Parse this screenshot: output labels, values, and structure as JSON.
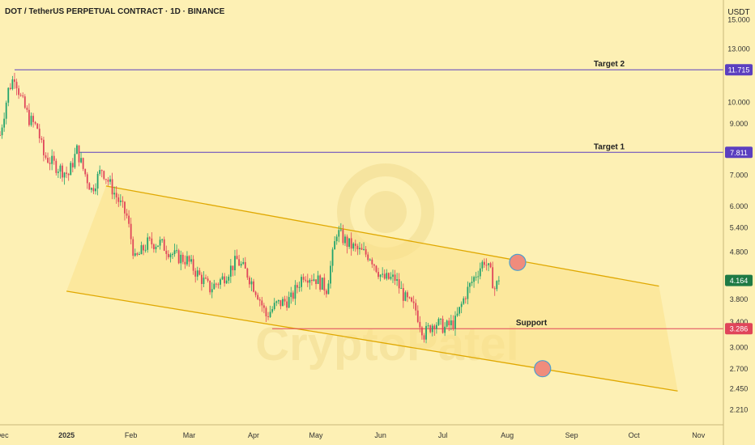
{
  "header": {
    "title": "DOT / TetherUS PERPETUAL CONTRACT · 1D · BINANCE"
  },
  "currency": "USDT",
  "watermark": "CryptoPatel",
  "colors": {
    "background": "#fdf0b4",
    "up": "#22a36c",
    "down": "#e0455a",
    "channel_line": "#e0a800",
    "channel_fill": "#fbe28e",
    "target_line": "#5b3fc0",
    "support_line": "#e0455a",
    "last_price_badge": "#1e7a45",
    "marker": "#f08c7c"
  },
  "chart_data": {
    "type": "candlestick",
    "y_scale": "log",
    "ylim": [
      2.05,
      16.5
    ],
    "xlim": [
      "2024-11-30",
      "2025-11-13"
    ],
    "x_ticks": [
      {
        "date": "2024-12-01",
        "label": "Dec"
      },
      {
        "date": "2025-01-01",
        "label": "2025"
      },
      {
        "date": "2025-02-01",
        "label": "Feb"
      },
      {
        "date": "2025-03-01",
        "label": "Mar"
      },
      {
        "date": "2025-04-01",
        "label": "Apr"
      },
      {
        "date": "2025-05-01",
        "label": "May"
      },
      {
        "date": "2025-06-01",
        "label": "Jun"
      },
      {
        "date": "2025-07-01",
        "label": "Jul"
      },
      {
        "date": "2025-08-01",
        "label": "Aug"
      },
      {
        "date": "2025-09-01",
        "label": "Sep"
      },
      {
        "date": "2025-10-01",
        "label": "Oct"
      },
      {
        "date": "2025-11-01",
        "label": "Nov"
      }
    ],
    "y_ticks": [
      "15.000",
      "13.000",
      "11.715",
      "10.000",
      "9.000",
      "7.811",
      "7.000",
      "6.000",
      "5.400",
      "4.800",
      "4.164",
      "3.800",
      "3.400",
      "3.286",
      "3.000",
      "2.700",
      "2.450",
      "2.210"
    ],
    "horizontal_levels": [
      {
        "label": "Target 2",
        "value": 11.715,
        "tag": "11.715"
      },
      {
        "label": "Target 1",
        "value": 7.811,
        "tag": "7.811"
      },
      {
        "label": "Support",
        "value": 3.286,
        "tag": "3.286"
      }
    ],
    "last_price": {
      "value": 4.164,
      "tag": "4.164"
    },
    "channel": {
      "upper": [
        [
          "2025-01-20",
          6.62
        ],
        [
          "2025-10-13",
          4.05
        ]
      ],
      "lower": [
        [
          "2025-01-01",
          3.95
        ],
        [
          "2025-10-22",
          2.42
        ]
      ]
    },
    "markers": [
      {
        "date": "2025-08-06",
        "value": 4.55
      },
      {
        "date": "2025-08-18",
        "value": 2.7
      }
    ],
    "price_path": [
      [
        "2024-11-30",
        8.5
      ],
      [
        "2024-12-04",
        10.6
      ],
      [
        "2024-12-07",
        11.4
      ],
      [
        "2024-12-10",
        10.2
      ],
      [
        "2024-12-14",
        9.2
      ],
      [
        "2024-12-18",
        8.8
      ],
      [
        "2024-12-21",
        7.7
      ],
      [
        "2024-12-27",
        7.3
      ],
      [
        "2025-01-02",
        7.0
      ],
      [
        "2025-01-06",
        7.9
      ],
      [
        "2025-01-09",
        7.2
      ],
      [
        "2025-01-13",
        6.5
      ],
      [
        "2025-01-18",
        7.2
      ],
      [
        "2025-01-24",
        6.4
      ],
      [
        "2025-01-30",
        5.7
      ],
      [
        "2025-02-03",
        4.6
      ],
      [
        "2025-02-09",
        5.0
      ],
      [
        "2025-02-15",
        5.0
      ],
      [
        "2025-02-22",
        4.7
      ],
      [
        "2025-02-28",
        4.6
      ],
      [
        "2025-03-05",
        4.3
      ],
      [
        "2025-03-11",
        4.0
      ],
      [
        "2025-03-17",
        4.2
      ],
      [
        "2025-03-24",
        4.6
      ],
      [
        "2025-03-29",
        4.3
      ],
      [
        "2025-04-03",
        3.9
      ],
      [
        "2025-04-07",
        3.5
      ],
      [
        "2025-04-12",
        3.7
      ],
      [
        "2025-04-19",
        3.8
      ],
      [
        "2025-04-25",
        4.3
      ],
      [
        "2025-05-01",
        4.2
      ],
      [
        "2025-05-06",
        4.0
      ],
      [
        "2025-05-09",
        4.7
      ],
      [
        "2025-05-11",
        5.3
      ],
      [
        "2025-05-16",
        5.0
      ],
      [
        "2025-05-22",
        4.8
      ],
      [
        "2025-05-27",
        4.7
      ],
      [
        "2025-06-02",
        4.2
      ],
      [
        "2025-06-08",
        4.2
      ],
      [
        "2025-06-13",
        3.8
      ],
      [
        "2025-06-18",
        3.6
      ],
      [
        "2025-06-22",
        3.2
      ],
      [
        "2025-06-27",
        3.4
      ],
      [
        "2025-07-02",
        3.3
      ],
      [
        "2025-07-07",
        3.4
      ],
      [
        "2025-07-12",
        3.9
      ],
      [
        "2025-07-17",
        4.3
      ],
      [
        "2025-07-21",
        4.6
      ],
      [
        "2025-07-24",
        4.3
      ],
      [
        "2025-07-26",
        4.0
      ],
      [
        "2025-07-28",
        4.164
      ]
    ]
  }
}
